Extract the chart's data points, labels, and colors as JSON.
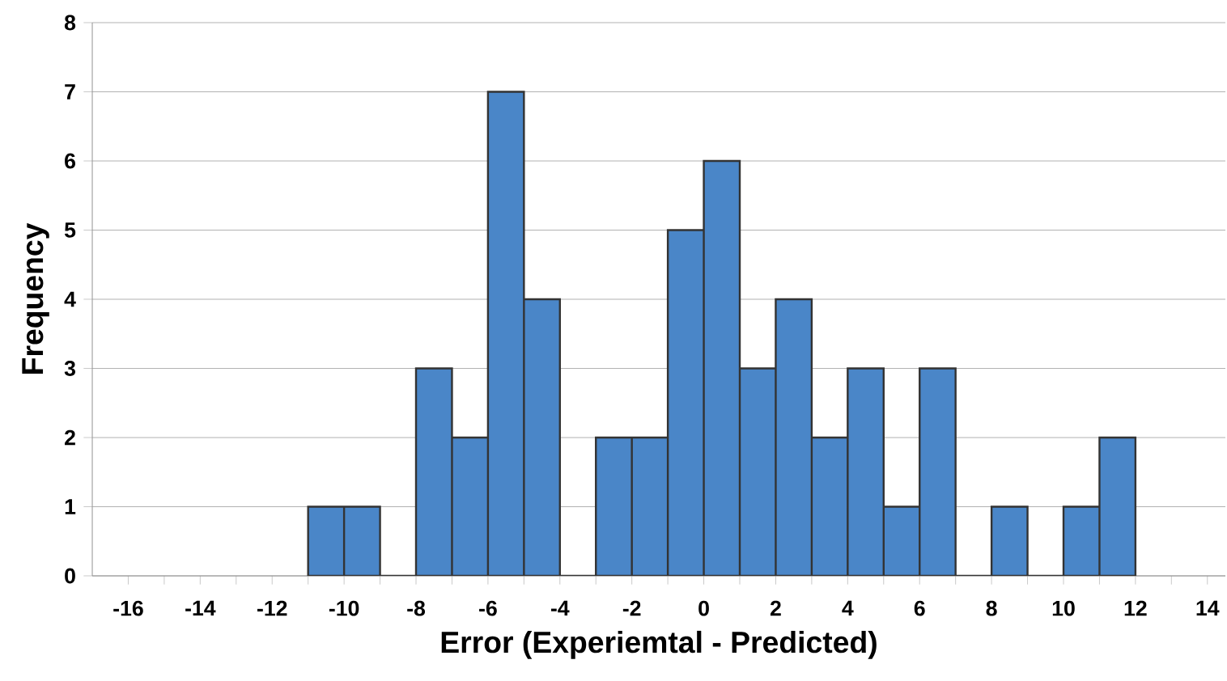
{
  "chart_data": {
    "type": "histogram",
    "xlabel": "Error (Experiemtal - Predicted)",
    "ylabel": "Frequency",
    "bins": [
      -11,
      -10,
      -9,
      -8,
      -7,
      -6,
      -5,
      -4,
      -3,
      -2,
      -1,
      0,
      1,
      2,
      3,
      4,
      5,
      6,
      7,
      8,
      9,
      10,
      11,
      12
    ],
    "values": [
      1,
      1,
      0,
      3,
      2,
      7,
      4,
      0,
      2,
      2,
      5,
      6,
      3,
      4,
      2,
      3,
      1,
      3,
      0,
      1,
      0,
      1,
      2
    ],
    "color": "#4a86c8",
    "xlim": [
      -17,
      14.5
    ],
    "ylim": [
      0,
      8
    ],
    "xticks": [
      -16,
      {
        "value": -15,
        "label": null
      },
      -14,
      {
        "value": -13,
        "label": null
      },
      -12,
      {
        "value": -11,
        "label": null
      },
      -10,
      {
        "value": -9,
        "label": null
      },
      -8,
      {
        "value": -7,
        "label": null
      },
      -6,
      {
        "value": -5,
        "label": null
      },
      -4,
      {
        "value": -3,
        "label": null
      },
      -2,
      {
        "value": -1,
        "label": null
      },
      0,
      {
        "value": 1,
        "label": null
      },
      2,
      {
        "value": 3,
        "label": null
      },
      4,
      {
        "value": 5,
        "label": null
      },
      6,
      {
        "value": 7,
        "label": null
      },
      8,
      {
        "value": 9,
        "label": null
      },
      10,
      {
        "value": 11,
        "label": null
      },
      12,
      {
        "value": 13,
        "label": null
      },
      14
    ],
    "yticks": [
      0,
      1,
      2,
      3,
      4,
      5,
      6,
      7,
      8
    ],
    "grid": "y"
  }
}
